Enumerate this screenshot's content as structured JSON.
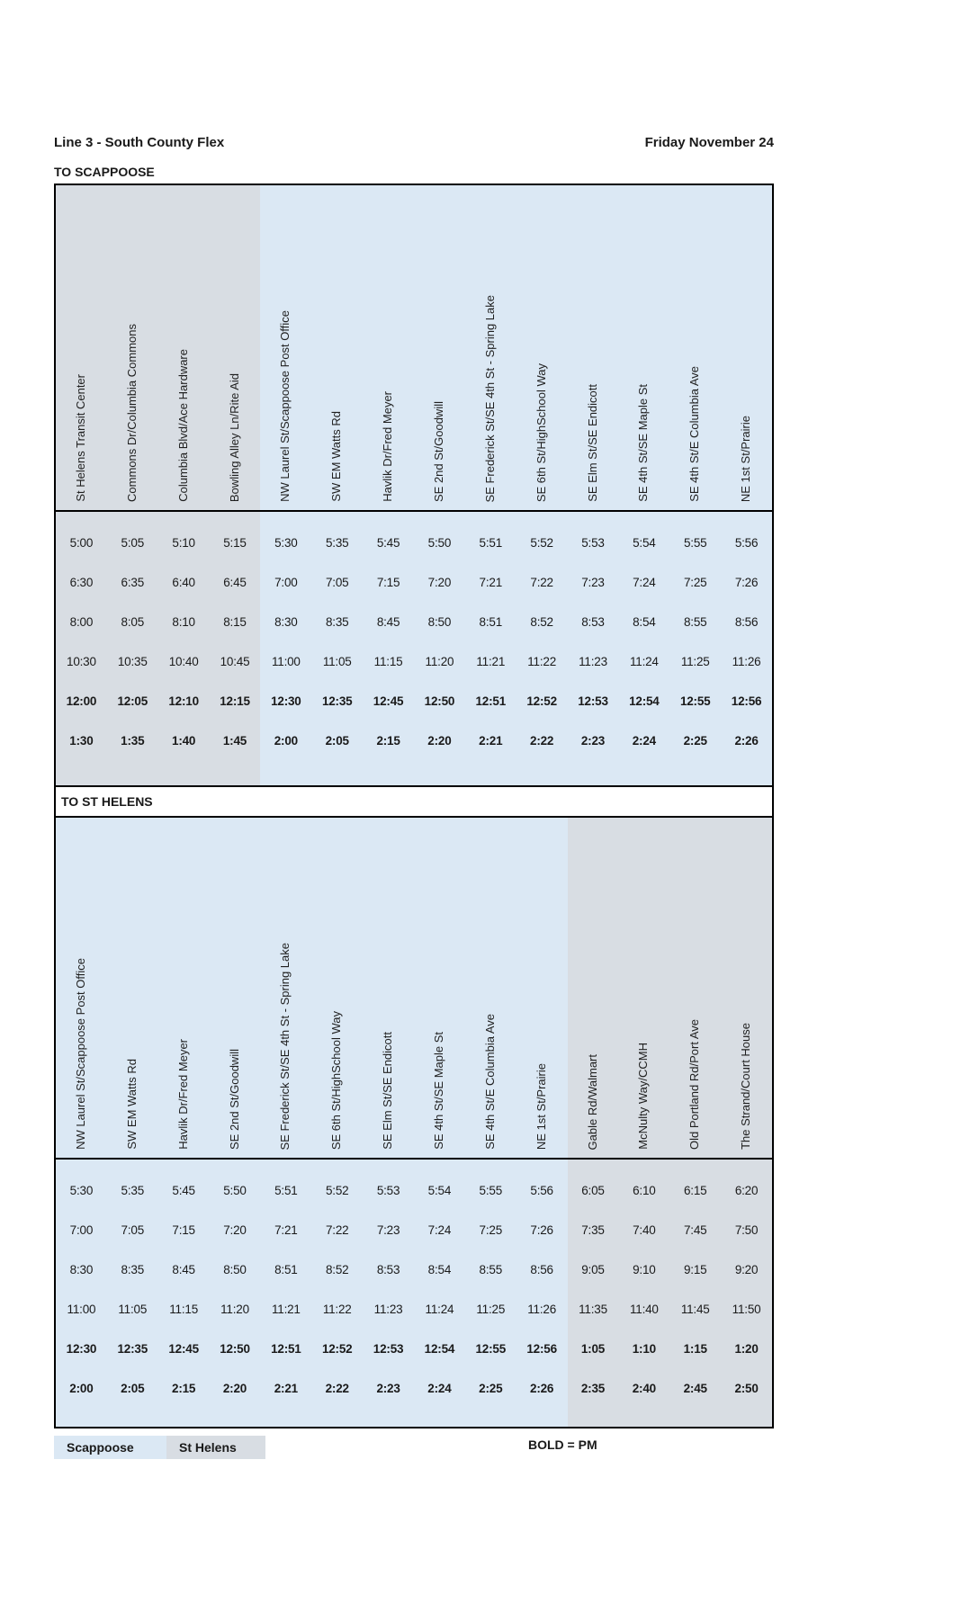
{
  "page": {
    "title": "Line 3 - South County Flex",
    "date": "Friday November 24",
    "legend": {
      "scappoose": "Scappoose",
      "st_helens": "St Helens",
      "bold_note": "BOLD = PM"
    },
    "colors": {
      "scappoose_zone": "#dbe8f4",
      "st_helens_zone": "#d8dde3"
    }
  },
  "tables": [
    {
      "direction_label": "TO SCAPPOOSE",
      "columns": [
        {
          "label": "St Helens Transit Center",
          "zone": "st_helens_zone"
        },
        {
          "label": "Commons Dr/Columbia Commons",
          "zone": "st_helens_zone"
        },
        {
          "label": "Columbia Blvd/Ace Hardware",
          "zone": "st_helens_zone"
        },
        {
          "label": "Bowling Alley Ln/Rite Aid",
          "zone": "st_helens_zone"
        },
        {
          "label": "NW Laurel St/Scappoose Post Office",
          "zone": "scappoose_zone"
        },
        {
          "label": "SW EM Watts Rd",
          "zone": "scappoose_zone"
        },
        {
          "label": "Havlik Dr/Fred Meyer",
          "zone": "scappoose_zone"
        },
        {
          "label": "SE 2nd St/Goodwill",
          "zone": "scappoose_zone"
        },
        {
          "label": "SE Frederick St/SE 4th St - Spring Lake",
          "zone": "scappoose_zone"
        },
        {
          "label": "SE 6th St/HighSchool Way",
          "zone": "scappoose_zone"
        },
        {
          "label": "SE Elm St/SE Endicott",
          "zone": "scappoose_zone"
        },
        {
          "label": "SE 4th St/SE Maple St",
          "zone": "scappoose_zone"
        },
        {
          "label": "SE 4th St/E Columbia Ave",
          "zone": "scappoose_zone"
        },
        {
          "label": "NE 1st St/Prairie",
          "zone": "scappoose_zone"
        }
      ],
      "rows": [
        {
          "pm": false,
          "times": [
            "5:00",
            "5:05",
            "5:10",
            "5:15",
            "5:30",
            "5:35",
            "5:45",
            "5:50",
            "5:51",
            "5:52",
            "5:53",
            "5:54",
            "5:55",
            "5:56"
          ]
        },
        {
          "pm": false,
          "times": [
            "6:30",
            "6:35",
            "6:40",
            "6:45",
            "7:00",
            "7:05",
            "7:15",
            "7:20",
            "7:21",
            "7:22",
            "7:23",
            "7:24",
            "7:25",
            "7:26"
          ]
        },
        {
          "pm": false,
          "times": [
            "8:00",
            "8:05",
            "8:10",
            "8:15",
            "8:30",
            "8:35",
            "8:45",
            "8:50",
            "8:51",
            "8:52",
            "8:53",
            "8:54",
            "8:55",
            "8:56"
          ]
        },
        {
          "pm": false,
          "times": [
            "10:30",
            "10:35",
            "10:40",
            "10:45",
            "11:00",
            "11:05",
            "11:15",
            "11:20",
            "11:21",
            "11:22",
            "11:23",
            "11:24",
            "11:25",
            "11:26"
          ]
        },
        {
          "pm": true,
          "times": [
            "12:00",
            "12:05",
            "12:10",
            "12:15",
            "12:30",
            "12:35",
            "12:45",
            "12:50",
            "12:51",
            "12:52",
            "12:53",
            "12:54",
            "12:55",
            "12:56"
          ]
        },
        {
          "pm": true,
          "times": [
            "1:30",
            "1:35",
            "1:40",
            "1:45",
            "2:00",
            "2:05",
            "2:15",
            "2:20",
            "2:21",
            "2:22",
            "2:23",
            "2:24",
            "2:25",
            "2:26"
          ]
        }
      ]
    },
    {
      "direction_label": "TO ST HELENS",
      "columns": [
        {
          "label": "NW Laurel St/Scappoose Post Office",
          "zone": "scappoose_zone"
        },
        {
          "label": "SW EM Watts Rd",
          "zone": "scappoose_zone"
        },
        {
          "label": "Havlik Dr/Fred Meyer",
          "zone": "scappoose_zone"
        },
        {
          "label": "SE 2nd St/Goodwill",
          "zone": "scappoose_zone"
        },
        {
          "label": "SE Frederick St/SE 4th St - Spring Lake",
          "zone": "scappoose_zone"
        },
        {
          "label": "SE 6th St/HighSchool Way",
          "zone": "scappoose_zone"
        },
        {
          "label": "SE Elm St/SE Endicott",
          "zone": "scappoose_zone"
        },
        {
          "label": "SE 4th St/SE Maple St",
          "zone": "scappoose_zone"
        },
        {
          "label": "SE 4th St/E Columbia Ave",
          "zone": "scappoose_zone"
        },
        {
          "label": "NE 1st St/Prairie",
          "zone": "scappoose_zone"
        },
        {
          "label": "Gable Rd/Walmart",
          "zone": "st_helens_zone"
        },
        {
          "label": "McNulty Way/CCMH",
          "zone": "st_helens_zone"
        },
        {
          "label": "Old Portland Rd/Port Ave",
          "zone": "st_helens_zone"
        },
        {
          "label": "The Strand/Court House",
          "zone": "st_helens_zone"
        }
      ],
      "rows": [
        {
          "pm": false,
          "times": [
            "5:30",
            "5:35",
            "5:45",
            "5:50",
            "5:51",
            "5:52",
            "5:53",
            "5:54",
            "5:55",
            "5:56",
            "6:05",
            "6:10",
            "6:15",
            "6:20"
          ]
        },
        {
          "pm": false,
          "times": [
            "7:00",
            "7:05",
            "7:15",
            "7:20",
            "7:21",
            "7:22",
            "7:23",
            "7:24",
            "7:25",
            "7:26",
            "7:35",
            "7:40",
            "7:45",
            "7:50"
          ]
        },
        {
          "pm": false,
          "times": [
            "8:30",
            "8:35",
            "8:45",
            "8:50",
            "8:51",
            "8:52",
            "8:53",
            "8:54",
            "8:55",
            "8:56",
            "9:05",
            "9:10",
            "9:15",
            "9:20"
          ]
        },
        {
          "pm": false,
          "times": [
            "11:00",
            "11:05",
            "11:15",
            "11:20",
            "11:21",
            "11:22",
            "11:23",
            "11:24",
            "11:25",
            "11:26",
            "11:35",
            "11:40",
            "11:45",
            "11:50"
          ]
        },
        {
          "pm": true,
          "times": [
            "12:30",
            "12:35",
            "12:45",
            "12:50",
            "12:51",
            "12:52",
            "12:53",
            "12:54",
            "12:55",
            "12:56",
            "1:05",
            "1:10",
            "1:15",
            "1:20"
          ]
        },
        {
          "pm": true,
          "times": [
            "2:00",
            "2:05",
            "2:15",
            "2:20",
            "2:21",
            "2:22",
            "2:23",
            "2:24",
            "2:25",
            "2:26",
            "2:35",
            "2:40",
            "2:45",
            "2:50"
          ]
        }
      ]
    }
  ]
}
